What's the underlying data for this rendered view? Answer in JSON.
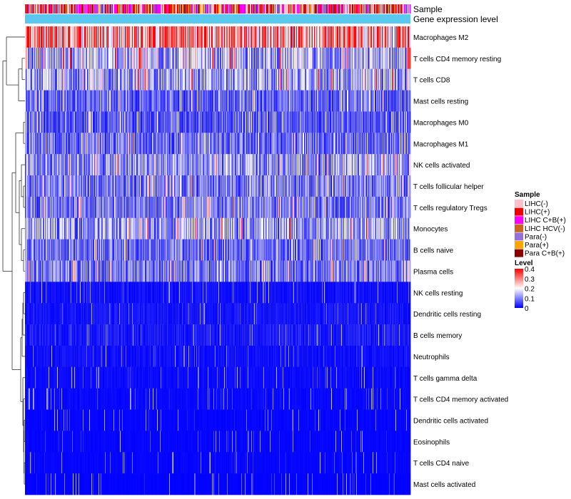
{
  "chart_data": {
    "type": "heatmap",
    "title": "",
    "annotation_tracks": [
      "Sample",
      "Gene expression level"
    ],
    "rows": [
      "Macrophages M2",
      "T cells CD4 memory resting",
      "T cells CD8",
      "Mast cells resting",
      "Macrophages M0",
      "Macrophages M1",
      "NK cells activated",
      "T cells follicular helper",
      "T cells regulatory  Tregs",
      "Monocytes",
      "B cells naive",
      "Plasma cells",
      "NK cells resting",
      "Dendritic cells resting",
      "B cells memory",
      "Neutrophils",
      "T cells gamma delta",
      "T cells CD4 memory activated",
      "Dendritic cells activated",
      "Eosinophils",
      "T cells CD4 naive",
      "Mast cells activated"
    ],
    "row_mean_level": [
      0.27,
      0.14,
      0.13,
      0.08,
      0.07,
      0.09,
      0.12,
      0.1,
      0.1,
      0.13,
      0.09,
      0.1,
      0.03,
      0.04,
      0.05,
      0.03,
      0.02,
      0.015,
      0.01,
      0.01,
      0.01,
      0.005
    ],
    "n_samples": 540,
    "sample_legend": {
      "title": "Sample",
      "items": [
        {
          "label": "LIHC(-)",
          "color": "#FFC0CB"
        },
        {
          "label": "LIHC(+)",
          "color": "#EE0000"
        },
        {
          "label": "LIHC C+B(+)",
          "color": "#FF00FF"
        },
        {
          "label": "LIHC HCV(-)",
          "color": "#CD661D"
        },
        {
          "label": "Para(-)",
          "color": "#9370DB"
        },
        {
          "label": "Para(+)",
          "color": "#FFA500"
        },
        {
          "label": "Para C+B(+)",
          "color": "#8B0000"
        }
      ]
    },
    "level_legend": {
      "title": "Level",
      "ticks": [
        "0.4",
        "0.3",
        "0.2",
        "0.1",
        "0"
      ],
      "range": [
        0,
        0.4
      ],
      "colors": [
        "#0000FF",
        "#FFFFFF",
        "#FF0000"
      ]
    },
    "gene_expression_color": "#5BC8F0"
  }
}
